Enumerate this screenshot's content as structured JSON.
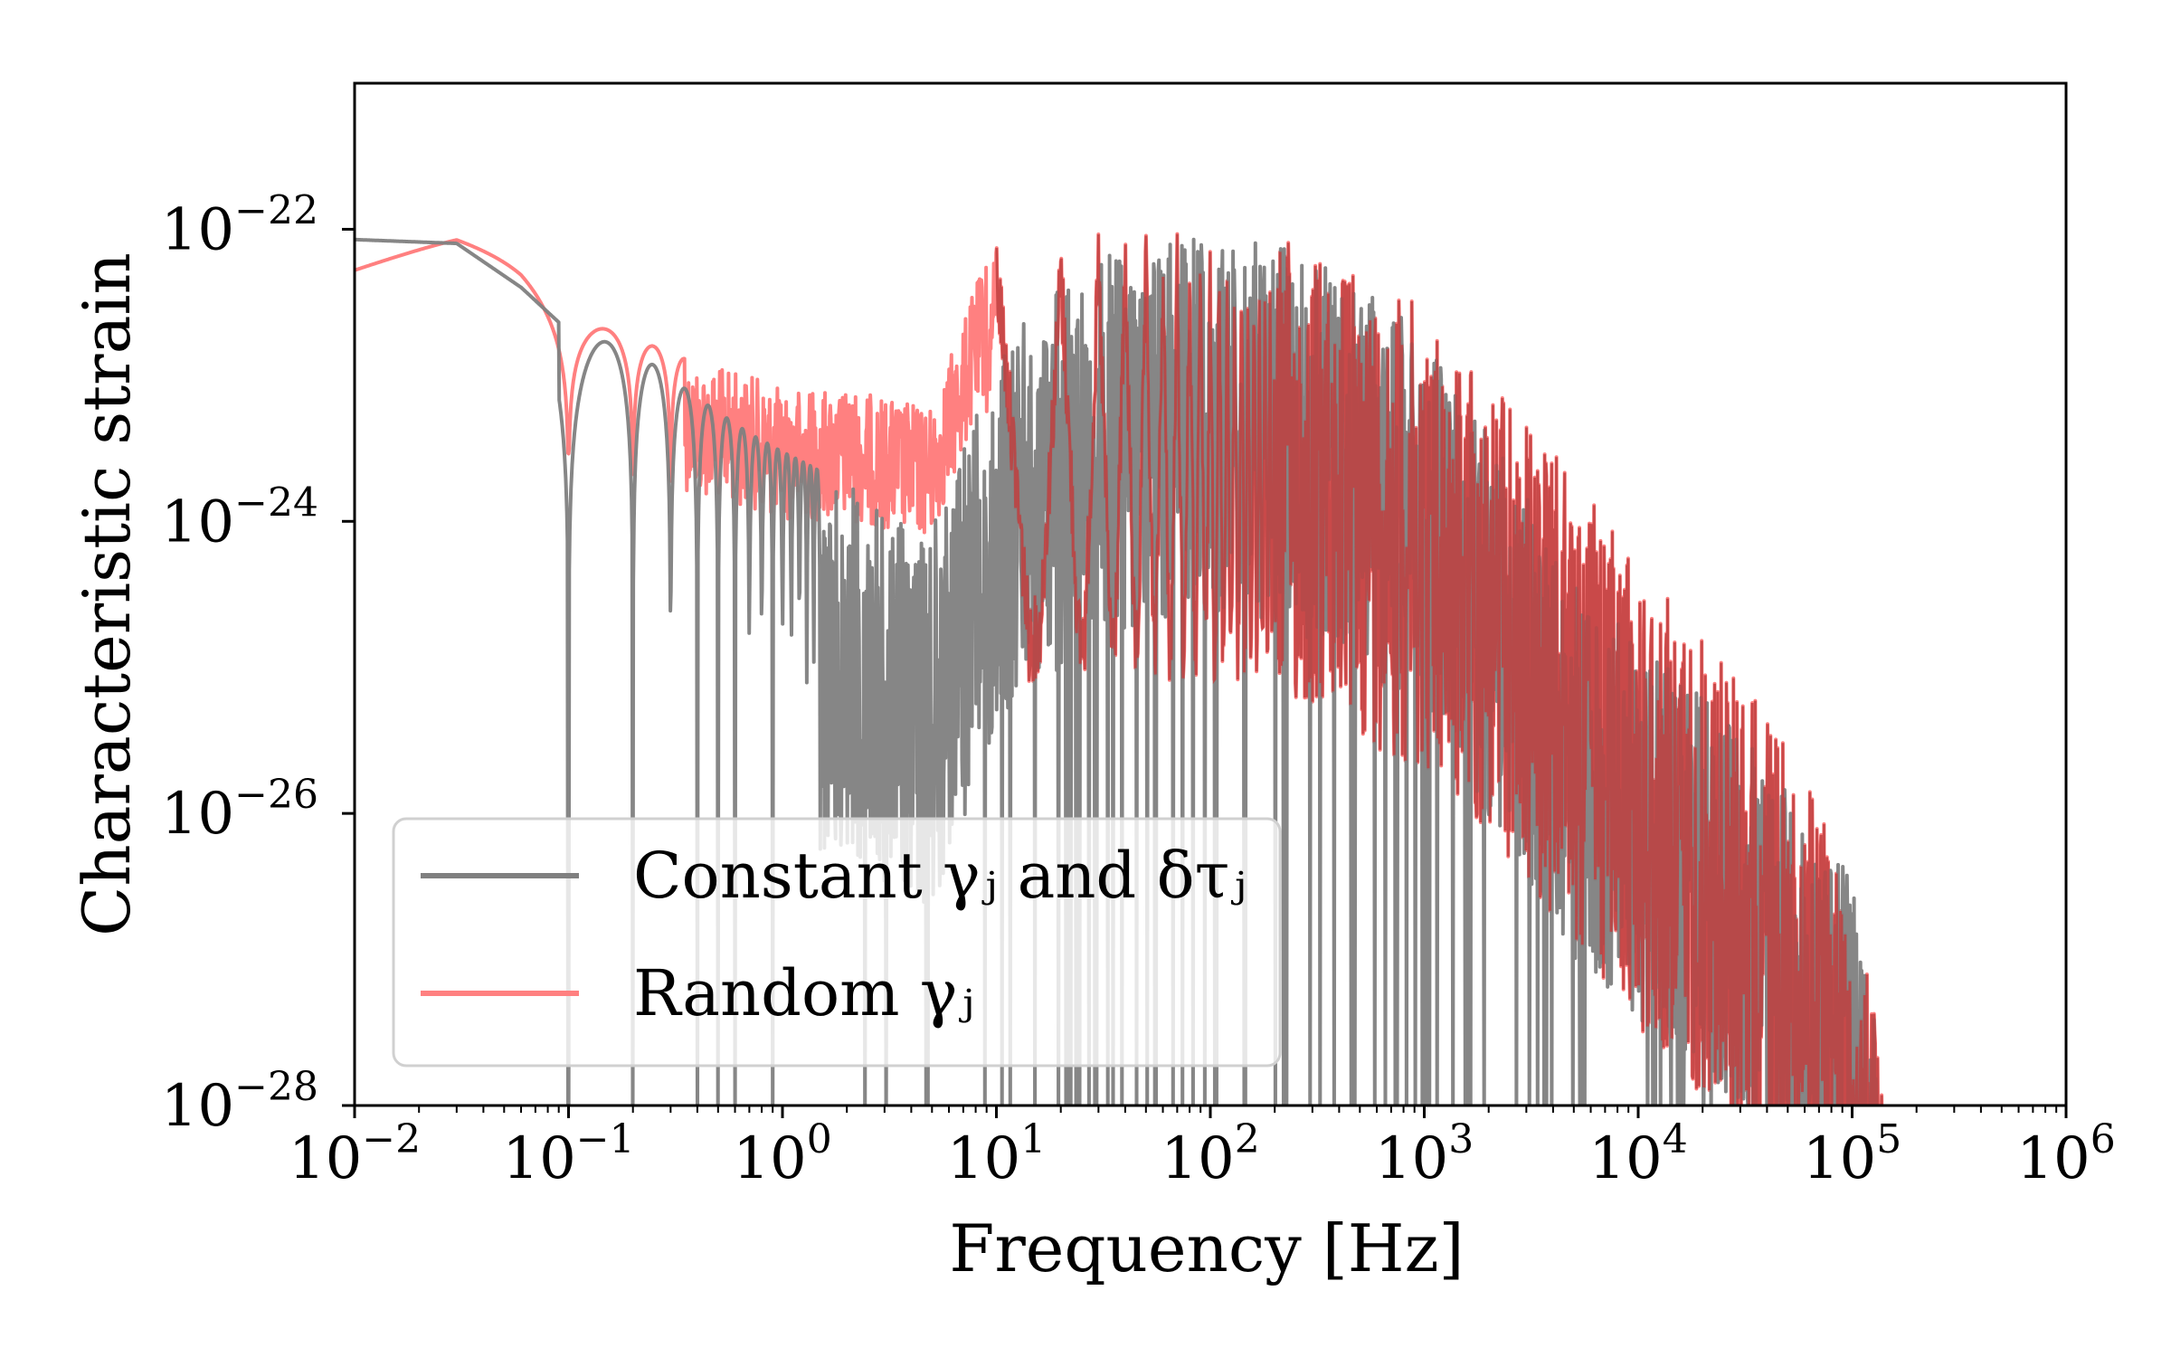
{
  "chart_data": {
    "type": "line",
    "title": "",
    "xlabel": "Frequency [Hz]",
    "ylabel": "Characteristic strain",
    "xscale": "log",
    "yscale": "log",
    "xlim": [
      0.01,
      1000000
    ],
    "ylim": [
      1e-28,
      1e-21
    ],
    "grid": false,
    "legend_position": "lower-left",
    "x_ticks": [
      {
        "value": 0.01,
        "base": "10",
        "exp": "−2"
      },
      {
        "value": 0.1,
        "base": "10",
        "exp": "−1"
      },
      {
        "value": 1,
        "base": "10",
        "exp": "0"
      },
      {
        "value": 10,
        "base": "10",
        "exp": "1"
      },
      {
        "value": 100,
        "base": "10",
        "exp": "2"
      },
      {
        "value": 1000,
        "base": "10",
        "exp": "3"
      },
      {
        "value": 10000,
        "base": "10",
        "exp": "4"
      },
      {
        "value": 100000,
        "base": "10",
        "exp": "5"
      },
      {
        "value": 1000000,
        "base": "10",
        "exp": "6"
      }
    ],
    "y_ticks": [
      {
        "value": 1e-22,
        "base": "10",
        "exp": "−22"
      },
      {
        "value": 1e-24,
        "base": "10",
        "exp": "−24"
      },
      {
        "value": 1e-26,
        "base": "10",
        "exp": "−26"
      },
      {
        "value": 1e-28,
        "base": "10",
        "exp": "−28"
      }
    ],
    "series": [
      {
        "name": "Constant γⱼ and δτⱼ",
        "color": "#808080",
        "envelope": {
          "x": [
            0.01,
            0.03,
            0.06,
            0.1,
            0.2,
            0.4,
            0.7,
            1,
            2,
            5,
            10,
            30,
            100,
            200,
            400,
            1000,
            3000,
            5000,
            10000,
            30000,
            100000,
            140000
          ],
          "y": [
            8.5e-23,
            8e-23,
            4e-23,
            2e-23,
            1.5e-23,
            7e-24,
            4e-24,
            3e-24,
            1.8e-24,
            9e-25,
            1.5e-23,
            7e-23,
            9e-23,
            8e-23,
            5e-23,
            2e-23,
            1.5e-24,
            4e-25,
            1.5e-25,
            4e-26,
            4e-27,
            1.5e-28
          ]
        },
        "peak_frequency_spacing": 0.1,
        "notes_visible": []
      },
      {
        "name": "Random γⱼ",
        "color": "#ff8080",
        "overlap_color": "#c04040",
        "envelope": {
          "x": [
            0.01,
            0.03,
            0.06,
            0.1,
            0.2,
            0.4,
            0.7,
            1,
            2,
            5,
            10,
            30,
            100,
            200,
            400,
            1000,
            3000,
            5000,
            10000,
            30000,
            100000,
            140000
          ],
          "y": [
            1e-22,
            9.5e-23,
            5e-23,
            2.5e-23,
            1.8e-23,
            1.2e-23,
            1e-23,
            8e-24,
            8e-24,
            6e-24,
            1e-22,
            1e-22,
            1e-22,
            9e-23,
            6e-23,
            3e-23,
            5e-24,
            2e-24,
            5e-25,
            1e-25,
            5e-27,
            1.5e-28
          ]
        },
        "peak_frequency_spacing": 10
      }
    ]
  },
  "legend": {
    "entries": [
      {
        "text": "Constant γⱼ and δτⱼ",
        "color": "#808080"
      },
      {
        "text": "Random γⱼ",
        "color": "#ff8080"
      }
    ]
  }
}
